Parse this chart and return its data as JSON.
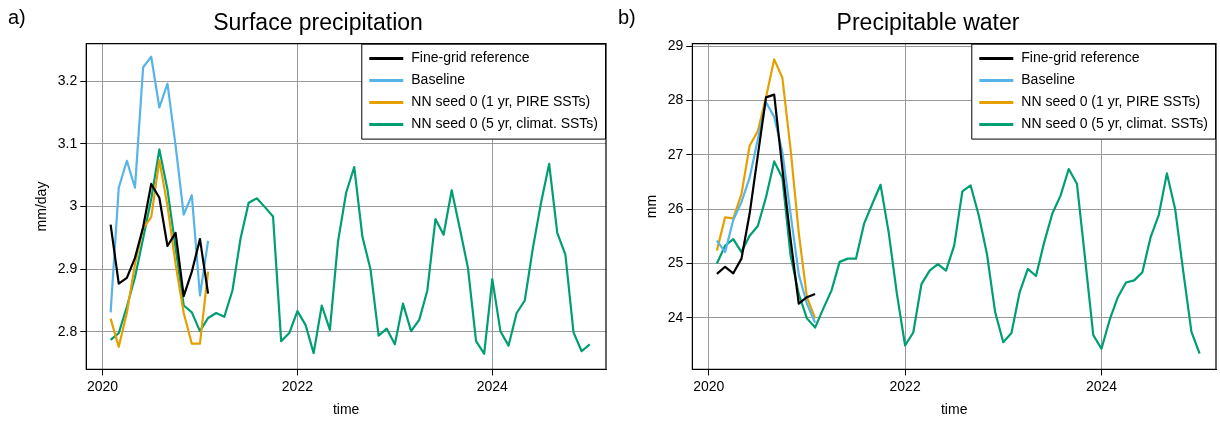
{
  "chart_data": [
    {
      "type": "line",
      "title": "Surface precipitation",
      "xlabel": "time",
      "ylabel": "mm/day",
      "annotations": [
        "a)"
      ],
      "x": [
        "2020-02",
        "2020-03",
        "2020-04",
        "2020-05",
        "2020-06",
        "2020-07",
        "2020-08",
        "2020-09",
        "2020-10",
        "2020-11",
        "2020-12",
        "2021-01",
        "2021-02",
        "2021-03",
        "2021-04",
        "2021-05",
        "2021-06",
        "2021-07",
        "2021-08",
        "2021-09",
        "2021-10",
        "2021-11",
        "2021-12",
        "2022-01",
        "2022-02",
        "2022-03",
        "2022-04",
        "2022-05",
        "2022-06",
        "2022-07",
        "2022-08",
        "2022-09",
        "2022-10",
        "2022-11",
        "2022-12",
        "2023-01",
        "2023-02",
        "2023-03",
        "2023-04",
        "2023-05",
        "2023-06",
        "2023-07",
        "2023-08",
        "2023-09",
        "2023-10",
        "2023-11",
        "2023-12",
        "2024-01",
        "2024-02",
        "2024-03",
        "2024-04",
        "2024-05",
        "2024-06",
        "2024-07",
        "2024-08",
        "2024-09",
        "2024-10",
        "2024-11",
        "2024-12",
        "2025-01"
      ],
      "series": [
        {
          "name": "Fine-grid reference",
          "color": "#000000",
          "x": [
            "2020-02",
            "2020-03",
            "2020-04",
            "2020-05",
            "2020-06",
            "2020-07",
            "2020-08",
            "2020-09",
            "2020-10",
            "2020-11",
            "2020-12",
            "2021-01",
            "2021-02"
          ],
          "values": [
            2.971,
            2.877,
            2.886,
            2.918,
            2.967,
            3.036,
            3.014,
            2.937,
            2.958,
            2.857,
            2.896,
            2.948,
            2.861
          ]
        },
        {
          "name": "Baseline",
          "color": "#56b4e9",
          "x": [
            "2020-02",
            "2020-03",
            "2020-04",
            "2020-05",
            "2020-06",
            "2020-07",
            "2020-08",
            "2020-09",
            "2020-10",
            "2020-11",
            "2020-12",
            "2021-01",
            "2021-02"
          ],
          "values": [
            2.831,
            3.03,
            3.073,
            3.03,
            3.222,
            3.239,
            3.158,
            3.196,
            3.097,
            2.987,
            3.018,
            2.858,
            2.945
          ]
        },
        {
          "name": "NN seed 0 (1 yr, PIRE SSTs)",
          "color": "#e69f00",
          "x": [
            "2020-02",
            "2020-03",
            "2020-04",
            "2020-05",
            "2020-06",
            "2020-07",
            "2020-08",
            "2020-09",
            "2020-10",
            "2020-11",
            "2020-12",
            "2021-01",
            "2021-02"
          ],
          "values": [
            2.821,
            2.776,
            2.83,
            2.908,
            2.965,
            2.983,
            3.074,
            3.001,
            2.908,
            2.83,
            2.781,
            2.781,
            2.896
          ]
        },
        {
          "name": "NN seed 0 (5 yr, climat. SSTs)",
          "color": "#009e73",
          "values": [
            2.787,
            2.798,
            2.84,
            2.887,
            2.949,
            3.012,
            3.091,
            3.027,
            2.934,
            2.842,
            2.831,
            2.801,
            2.822,
            2.83,
            2.824,
            2.866,
            2.949,
            3.006,
            3.013,
            2.999,
            2.984,
            2.785,
            2.798,
            2.833,
            2.811,
            2.766,
            2.842,
            2.803,
            2.944,
            3.022,
            3.063,
            2.952,
            2.9,
            2.794,
            2.805,
            2.78,
            2.845,
            2.801,
            2.819,
            2.866,
            2.98,
            2.955,
            3.026,
            2.965,
            2.902,
            2.785,
            2.765,
            2.884,
            2.801,
            2.778,
            2.83,
            2.85,
            2.934,
            3.006,
            3.068,
            2.958,
            2.923,
            2.799,
            2.769,
            2.78
          ]
        }
      ],
      "xlim": [
        "2019-11",
        "2025-03"
      ],
      "xticks": [
        "2020",
        "2022",
        "2024"
      ],
      "ylim": [
        2.74,
        3.26
      ],
      "yticks": [
        2.8,
        2.9,
        3,
        3.1,
        3.2
      ],
      "grid": true,
      "legend": "top right",
      "line_style": "solid",
      "marker": "none"
    },
    {
      "type": "line",
      "title": "Precipitable water",
      "xlabel": "time",
      "ylabel": "mm",
      "annotations": [
        "b)"
      ],
      "x": [
        "2020-02",
        "2020-03",
        "2020-04",
        "2020-05",
        "2020-06",
        "2020-07",
        "2020-08",
        "2020-09",
        "2020-10",
        "2020-11",
        "2020-12",
        "2021-01",
        "2021-02",
        "2021-03",
        "2021-04",
        "2021-05",
        "2021-06",
        "2021-07",
        "2021-08",
        "2021-09",
        "2021-10",
        "2021-11",
        "2021-12",
        "2022-01",
        "2022-02",
        "2022-03",
        "2022-04",
        "2022-05",
        "2022-06",
        "2022-07",
        "2022-08",
        "2022-09",
        "2022-10",
        "2022-11",
        "2022-12",
        "2023-01",
        "2023-02",
        "2023-03",
        "2023-04",
        "2023-05",
        "2023-06",
        "2023-07",
        "2023-08",
        "2023-09",
        "2023-10",
        "2023-11",
        "2023-12",
        "2024-01",
        "2024-02",
        "2024-03",
        "2024-04",
        "2024-05",
        "2024-06",
        "2024-07",
        "2024-08",
        "2024-09",
        "2024-10",
        "2024-11",
        "2024-12",
        "2025-01"
      ],
      "series": [
        {
          "name": "Fine-grid reference",
          "color": "#000000",
          "x": [
            "2020-02",
            "2020-03",
            "2020-04",
            "2020-05",
            "2020-06",
            "2020-07",
            "2020-08",
            "2020-09",
            "2020-10",
            "2020-11",
            "2020-12",
            "2021-01",
            "2021-02"
          ],
          "values": [
            24.81,
            24.94,
            24.82,
            25.09,
            25.92,
            26.99,
            28.06,
            28.11,
            26.75,
            25.45,
            24.26,
            24.38,
            24.44
          ]
        },
        {
          "name": "Baseline",
          "color": "#56b4e9",
          "x": [
            "2020-02",
            "2020-03",
            "2020-04",
            "2020-05",
            "2020-06",
            "2020-07",
            "2020-08",
            "2020-09",
            "2020-10",
            "2020-11",
            "2020-12",
            "2021-01",
            "2021-02"
          ],
          "values": [
            25.42,
            25.21,
            25.8,
            26.13,
            26.58,
            27.29,
            27.97,
            27.7,
            27.05,
            25.92,
            24.8,
            24.26,
            23.91
          ]
        },
        {
          "name": "NN seed 0 (1 yr, PIRE SSTs)",
          "color": "#e69f00",
          "x": [
            "2020-02",
            "2020-03",
            "2020-04",
            "2020-05",
            "2020-06",
            "2020-07",
            "2020-08",
            "2020-09",
            "2020-10",
            "2020-11",
            "2020-12",
            "2021-01",
            "2021-02"
          ],
          "values": [
            25.24,
            25.85,
            25.83,
            26.28,
            27.17,
            27.44,
            28.06,
            28.76,
            28.42,
            27.11,
            25.57,
            24.38,
            23.99
          ]
        },
        {
          "name": "NN seed 0 (5 yr, climat. SSTs)",
          "color": "#009e73",
          "values": [
            25.0,
            25.33,
            25.45,
            25.21,
            25.51,
            25.69,
            26.22,
            26.88,
            26.58,
            25.15,
            24.44,
            23.99,
            23.82,
            24.17,
            24.5,
            25.03,
            25.09,
            25.09,
            25.74,
            26.1,
            26.45,
            25.57,
            24.44,
            23.49,
            23.73,
            24.62,
            24.87,
            24.99,
            24.87,
            25.33,
            26.33,
            26.44,
            25.89,
            25.18,
            24.11,
            23.55,
            23.72,
            24.47,
            24.9,
            24.77,
            25.39,
            25.92,
            26.25,
            26.74,
            26.47,
            25.09,
            23.68,
            23.43,
            23.96,
            24.38,
            24.65,
            24.69,
            24.84,
            25.48,
            25.89,
            26.66,
            26.01,
            24.85,
            23.74,
            23.34
          ]
        }
      ],
      "xlim": [
        "2019-11",
        "2025-03"
      ],
      "xticks": [
        "2020",
        "2022",
        "2024"
      ],
      "ylim": [
        23.05,
        29.05
      ],
      "yticks": [
        24,
        25,
        26,
        27,
        28,
        29
      ],
      "grid": true,
      "legend": "top right",
      "line_style": "solid",
      "marker": "none"
    }
  ]
}
